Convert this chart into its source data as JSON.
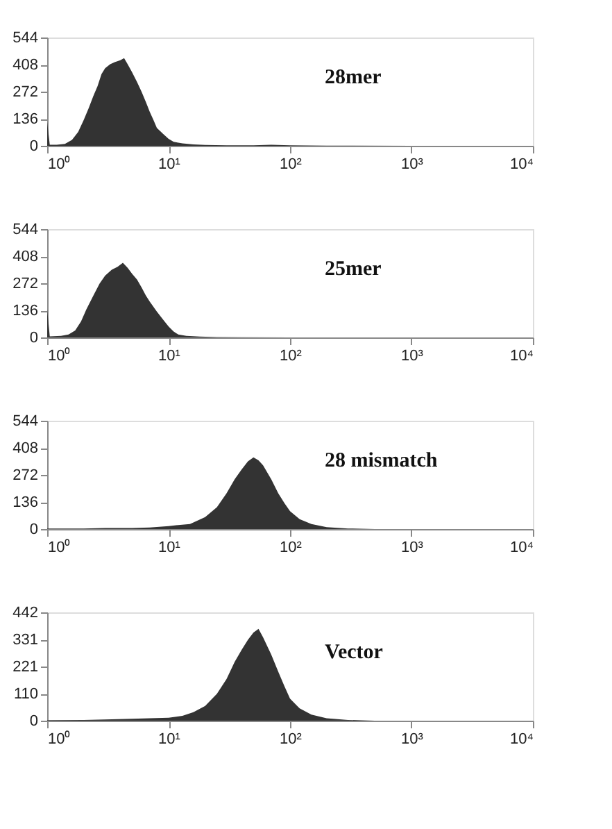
{
  "chart_data": [
    {
      "type": "area",
      "log": "x",
      "annotations": [
        "28mer"
      ],
      "xlim": [
        1,
        10000
      ],
      "ylim": [
        0,
        544
      ],
      "yticks": [
        0,
        136,
        272,
        408,
        544
      ],
      "xticks": [
        {
          "value": 1,
          "label": "10⁰"
        },
        {
          "value": 10,
          "label": "10¹"
        },
        {
          "value": 100,
          "label": "10²"
        },
        {
          "value": 1000,
          "label": "10³"
        },
        {
          "value": 10000,
          "label": "10⁴"
        }
      ],
      "grid": false,
      "series": [
        {
          "color": "#333333",
          "x": [
            1,
            1.05,
            1.2,
            1.4,
            1.6,
            1.8,
            2.0,
            2.2,
            2.4,
            2.6,
            2.8,
            3.0,
            3.3,
            3.6,
            4.0,
            4.3,
            4.6,
            5.0,
            5.5,
            6,
            6.5,
            7,
            7.5,
            8,
            9,
            10,
            11,
            13,
            16,
            20,
            30,
            50,
            70,
            100,
            200,
            1000,
            10000
          ],
          "values": [
            120,
            5,
            5,
            10,
            30,
            70,
            130,
            190,
            250,
            300,
            360,
            390,
            410,
            420,
            430,
            440,
            410,
            370,
            320,
            270,
            220,
            170,
            130,
            90,
            60,
            35,
            20,
            12,
            7,
            4,
            3,
            3,
            5,
            3,
            1,
            0,
            0
          ]
        }
      ]
    },
    {
      "type": "area",
      "log": "x",
      "annotations": [
        "25mer"
      ],
      "xlim": [
        1,
        10000
      ],
      "ylim": [
        0,
        544
      ],
      "yticks": [
        0,
        136,
        272,
        408,
        544
      ],
      "xticks": [
        {
          "value": 1,
          "label": "10⁰"
        },
        {
          "value": 10,
          "label": "10¹"
        },
        {
          "value": 100,
          "label": "10²"
        },
        {
          "value": 1000,
          "label": "10³"
        },
        {
          "value": 10000,
          "label": "10⁴"
        }
      ],
      "grid": false,
      "series": [
        {
          "color": "#333333",
          "x": [
            1,
            1.05,
            1.3,
            1.5,
            1.7,
            1.9,
            2.1,
            2.4,
            2.7,
            3.0,
            3.4,
            3.8,
            4.2,
            4.6,
            5.0,
            5.5,
            6,
            6.5,
            7,
            8,
            9,
            10,
            11,
            12,
            14,
            18,
            25,
            40,
            100,
            10000
          ],
          "values": [
            140,
            5,
            8,
            15,
            35,
            80,
            140,
            210,
            270,
            310,
            340,
            355,
            375,
            350,
            320,
            290,
            250,
            210,
            180,
            130,
            90,
            55,
            30,
            15,
            8,
            4,
            2,
            1,
            0,
            0
          ]
        }
      ]
    },
    {
      "type": "area",
      "log": "x",
      "annotations": [
        "28 mismatch"
      ],
      "xlim": [
        1,
        10000
      ],
      "ylim": [
        0,
        544
      ],
      "yticks": [
        0,
        136,
        272,
        408,
        544
      ],
      "xticks": [
        {
          "value": 1,
          "label": "10⁰"
        },
        {
          "value": 10,
          "label": "10¹"
        },
        {
          "value": 100,
          "label": "10²"
        },
        {
          "value": 1000,
          "label": "10³"
        },
        {
          "value": 10000,
          "label": "10⁴"
        }
      ],
      "grid": false,
      "series": [
        {
          "color": "#333333",
          "x": [
            1,
            2,
            3,
            5,
            7,
            10,
            12,
            15,
            20,
            25,
            30,
            35,
            40,
            45,
            50,
            55,
            60,
            70,
            80,
            90,
            100,
            120,
            150,
            200,
            300,
            500,
            10000
          ],
          "values": [
            3,
            3,
            5,
            5,
            8,
            15,
            20,
            25,
            60,
            110,
            180,
            250,
            300,
            340,
            360,
            345,
            320,
            250,
            180,
            130,
            90,
            50,
            25,
            10,
            3,
            0,
            0
          ]
        }
      ]
    },
    {
      "type": "area",
      "log": "x",
      "annotations": [
        "Vector"
      ],
      "xlim": [
        1,
        10000
      ],
      "ylim": [
        0,
        442
      ],
      "yticks": [
        0,
        110,
        221,
        331,
        442
      ],
      "xticks": [
        {
          "value": 1,
          "label": "10⁰"
        },
        {
          "value": 10,
          "label": "10¹"
        },
        {
          "value": 100,
          "label": "10²"
        },
        {
          "value": 1000,
          "label": "10³"
        },
        {
          "value": 10000,
          "label": "10⁴"
        }
      ],
      "grid": false,
      "series": [
        {
          "color": "#333333",
          "x": [
            1,
            2,
            3,
            5,
            7,
            10,
            13,
            16,
            20,
            25,
            30,
            35,
            40,
            45,
            50,
            55,
            60,
            70,
            80,
            90,
            100,
            120,
            150,
            200,
            300,
            500,
            10000
          ],
          "values": [
            2,
            3,
            5,
            8,
            10,
            12,
            20,
            35,
            60,
            110,
            170,
            240,
            290,
            330,
            360,
            375,
            340,
            270,
            200,
            140,
            90,
            50,
            25,
            10,
            3,
            0,
            0
          ]
        }
      ]
    }
  ]
}
